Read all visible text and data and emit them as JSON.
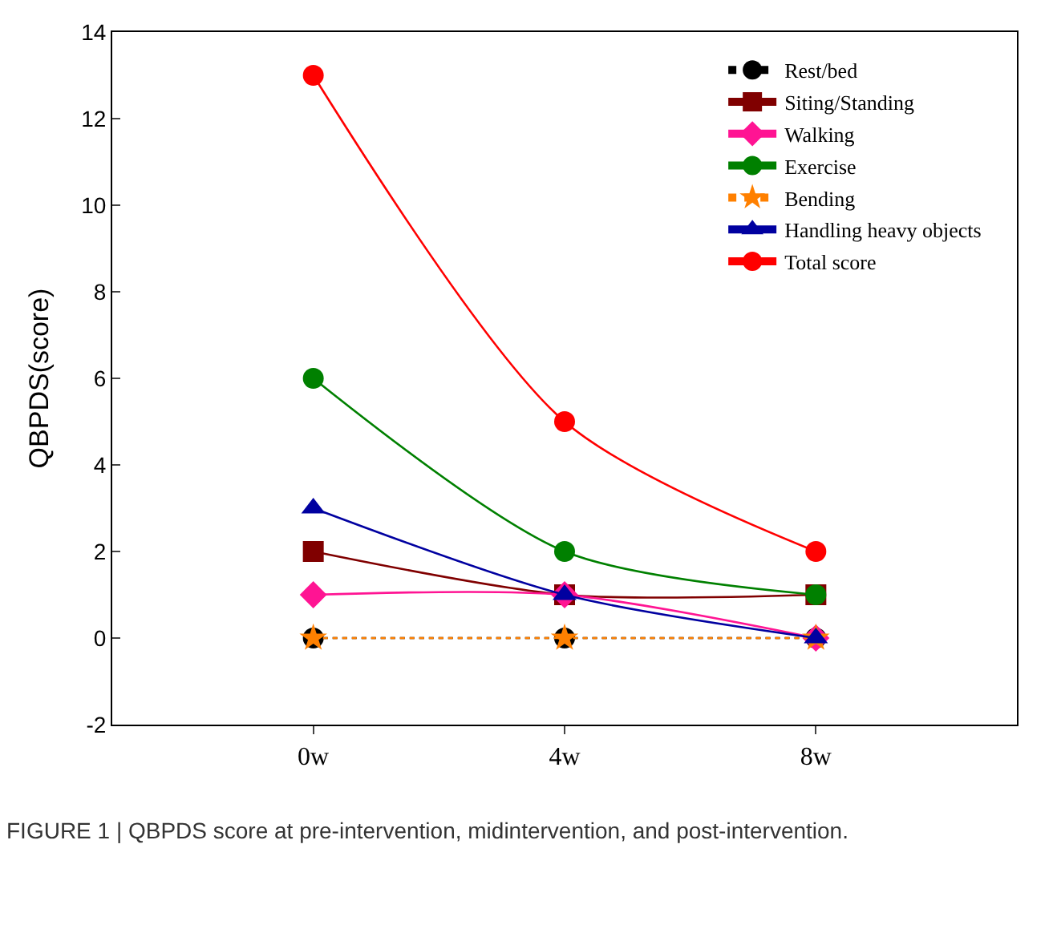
{
  "chart_data": {
    "type": "line",
    "ylabel": "QBPDS(score)",
    "categories": [
      "0w",
      "4w",
      "8w"
    ],
    "series": [
      {
        "name": "Rest/bed",
        "color": "#000000",
        "marker": "circle",
        "line_style": "dotted",
        "values": [
          0,
          0,
          0
        ]
      },
      {
        "name": "Siting/Standing",
        "color": "#800000",
        "marker": "square",
        "line_style": "solid",
        "values": [
          2,
          1,
          1
        ]
      },
      {
        "name": "Walking",
        "color": "#ff1493",
        "marker": "diamond",
        "line_style": "solid",
        "values": [
          1,
          1,
          0
        ]
      },
      {
        "name": "Exercise",
        "color": "#008000",
        "marker": "circle",
        "line_style": "solid",
        "values": [
          6,
          2,
          1
        ]
      },
      {
        "name": "Bending",
        "color": "#ff8000",
        "marker": "star",
        "line_style": "dotted",
        "values": [
          0,
          0,
          0
        ]
      },
      {
        "name": "Handling heavy objects",
        "color": "#0000a0",
        "marker": "triangle",
        "line_style": "solid",
        "values": [
          3,
          1,
          0
        ]
      },
      {
        "name": "Total score",
        "color": "#ff0000",
        "marker": "circle",
        "line_style": "solid",
        "values": [
          13,
          5,
          2
        ]
      }
    ],
    "ylim": [
      -2,
      14
    ],
    "yticks": [
      -2,
      0,
      2,
      4,
      6,
      8,
      10,
      12,
      14
    ],
    "legend": "top right",
    "annotations": [
      "FIGURE 1 | QBPDS score at pre-intervention, midintervention, and post-intervention."
    ]
  }
}
